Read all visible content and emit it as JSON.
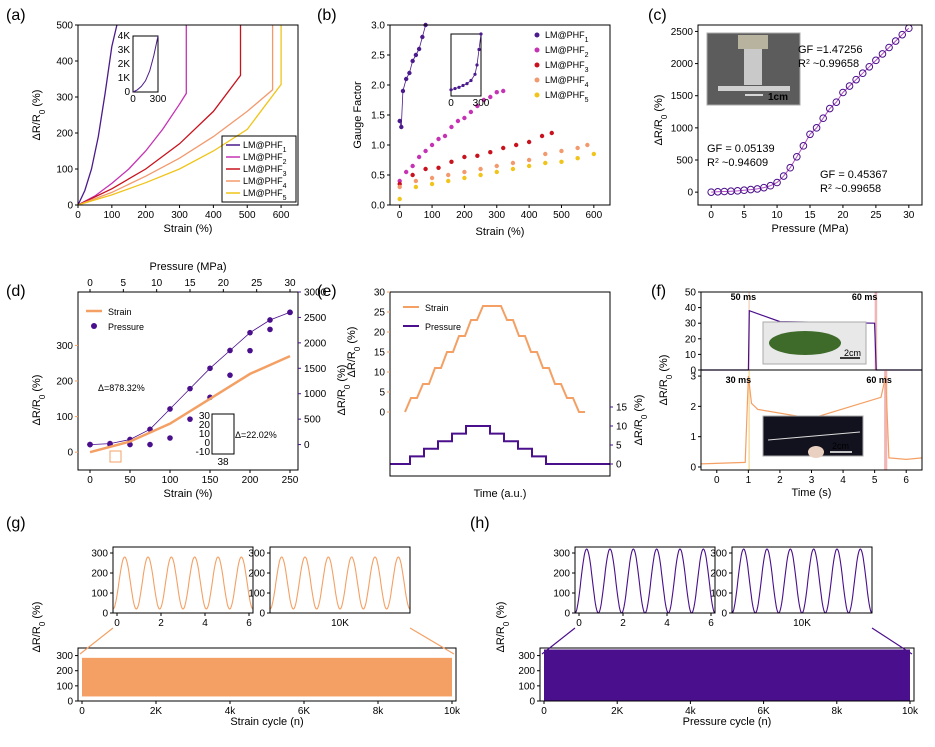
{
  "panel_labels": [
    "(a)",
    "(b)",
    "(c)",
    "(d)",
    "(e)",
    "(f)",
    "(g)",
    "(h)"
  ],
  "photo_labels": {
    "c": "1cm",
    "f_top": "2cm",
    "f_bottom": "2cm"
  },
  "colors": {
    "PHF1": "#4b1a8c",
    "PHF2": "#c532b4",
    "PHF3": "#c8121d",
    "PHF4": "#f29a6e",
    "PHF5": "#f0c419",
    "strain": "#f4a064",
    "pressure": "#4a0f8c",
    "fit": "#b050c0"
  },
  "chart_data": [
    {
      "id": "a",
      "type": "line",
      "xlabel": "Strain (%)",
      "ylabel": "ΔR/R0 (%)",
      "xlim": [
        0,
        650
      ],
      "ylim": [
        0,
        500
      ],
      "xticks": [
        "0",
        "100",
        "200",
        "300",
        "400",
        "500",
        "600"
      ],
      "yticks": [
        "0",
        "100",
        "200",
        "300",
        "400",
        "500"
      ],
      "legend": "bottom-right",
      "series": [
        {
          "name": "LM@PHF1",
          "x": [
            0,
            20,
            40,
            60,
            80,
            100,
            115
          ],
          "y": [
            0,
            40,
            100,
            190,
            310,
            440,
            500
          ]
        },
        {
          "name": "LM@PHF2",
          "x": [
            0,
            50,
            100,
            150,
            200,
            250,
            300,
            320,
            320
          ],
          "y": [
            0,
            25,
            60,
            100,
            150,
            210,
            280,
            310,
            500
          ]
        },
        {
          "name": "LM@PHF3",
          "x": [
            0,
            100,
            200,
            300,
            400,
            480,
            480
          ],
          "y": [
            0,
            45,
            100,
            170,
            260,
            360,
            500
          ]
        },
        {
          "name": "LM@PHF4",
          "x": [
            0,
            100,
            200,
            300,
            400,
            500,
            575,
            575
          ],
          "y": [
            0,
            35,
            80,
            130,
            190,
            260,
            320,
            500
          ]
        },
        {
          "name": "LM@PHF5",
          "x": [
            0,
            100,
            200,
            300,
            400,
            500,
            600,
            600
          ],
          "y": [
            0,
            28,
            62,
            100,
            150,
            210,
            335,
            500
          ]
        }
      ],
      "inset": {
        "xlim": [
          0,
          300
        ],
        "ylim": [
          0,
          4000
        ],
        "xticks": [
          "0",
          "300"
        ],
        "yticks": [
          "0",
          "1K",
          "2K",
          "3K",
          "4K"
        ],
        "x": [
          0,
          50,
          100,
          150,
          200,
          250,
          300
        ],
        "y": [
          0,
          150,
          400,
          800,
          1500,
          2600,
          4000
        ]
      }
    },
    {
      "id": "b",
      "type": "scatter",
      "xlabel": "Strain (%)",
      "ylabel": "Gauge Factor",
      "xlim": [
        -30,
        650
      ],
      "ylim": [
        0,
        3.0
      ],
      "xticks": [
        "0",
        "100",
        "200",
        "300",
        "400",
        "500",
        "600"
      ],
      "yticks": [
        "0.0",
        "0.5",
        "1.0",
        "1.5",
        "2.0",
        "2.5",
        "3.0"
      ],
      "legend": "top-right",
      "series": [
        {
          "name": "LM@PHF1",
          "x": [
            0,
            5,
            10,
            20,
            30,
            40,
            50,
            60,
            70,
            80
          ],
          "y": [
            1.4,
            1.3,
            1.9,
            2.1,
            2.2,
            2.4,
            2.5,
            2.6,
            2.8,
            3.0
          ]
        },
        {
          "name": "LM@PHF2",
          "x": [
            0,
            20,
            40,
            60,
            80,
            100,
            120,
            140,
            160,
            180,
            200,
            220,
            240,
            260,
            280,
            300,
            320
          ],
          "y": [
            0.4,
            0.55,
            0.65,
            0.8,
            0.9,
            1.0,
            1.1,
            1.15,
            1.3,
            1.4,
            1.45,
            1.55,
            1.65,
            1.75,
            1.8,
            1.88,
            1.9
          ]
        },
        {
          "name": "LM@PHF3",
          "x": [
            0,
            40,
            80,
            120,
            160,
            200,
            240,
            280,
            320,
            360,
            400,
            440,
            470
          ],
          "y": [
            0.35,
            0.5,
            0.6,
            0.62,
            0.72,
            0.8,
            0.82,
            0.88,
            0.95,
            1.0,
            1.05,
            1.15,
            1.2
          ]
        },
        {
          "name": "LM@PHF4",
          "x": [
            0,
            50,
            100,
            150,
            200,
            250,
            300,
            350,
            400,
            450,
            500,
            550,
            580
          ],
          "y": [
            0.3,
            0.4,
            0.45,
            0.5,
            0.55,
            0.6,
            0.65,
            0.7,
            0.75,
            0.85,
            0.9,
            0.95,
            1.0
          ]
        },
        {
          "name": "LM@PHF5",
          "x": [
            0,
            50,
            100,
            150,
            200,
            250,
            300,
            350,
            400,
            450,
            500,
            550,
            600
          ],
          "y": [
            0.1,
            0.3,
            0.35,
            0.4,
            0.45,
            0.5,
            0.55,
            0.6,
            0.65,
            0.7,
            0.72,
            0.78,
            0.85
          ]
        }
      ],
      "inset": {
        "xlim": [
          0,
          300
        ],
        "xticks": [
          "0",
          "300"
        ],
        "x": [
          0,
          40,
          80,
          120,
          160,
          200,
          240,
          260,
          280,
          300
        ],
        "y": [
          0.1,
          0.12,
          0.14,
          0.17,
          0.2,
          0.25,
          0.35,
          0.5,
          0.75,
          1.0
        ]
      }
    },
    {
      "id": "c",
      "type": "line",
      "xlabel": "Pressure (MPa)",
      "ylabel": "ΔR/R0 (%)",
      "xlim": [
        -2,
        32
      ],
      "ylim": [
        -200,
        2600
      ],
      "xticks": [
        "0",
        "5",
        "10",
        "15",
        "20",
        "25",
        "30"
      ],
      "yticks": [
        "0",
        "500",
        "1000",
        "1500",
        "2000",
        "2500"
      ],
      "x": [
        0,
        1,
        2,
        3,
        4,
        5,
        6,
        7,
        8,
        9,
        10,
        11,
        12,
        13,
        14,
        15,
        16,
        17,
        18,
        19,
        20,
        21,
        22,
        23,
        24,
        25,
        26,
        27,
        28,
        29,
        30
      ],
      "y": [
        0,
        5,
        10,
        15,
        20,
        30,
        40,
        50,
        70,
        100,
        150,
        250,
        380,
        550,
        720,
        900,
        1000,
        1150,
        1300,
        1400,
        1550,
        1650,
        1750,
        1850,
        1950,
        2050,
        2150,
        2250,
        2350,
        2450,
        2550
      ],
      "annotations": [
        {
          "gf": "GF = 0.05139",
          "r2": "R",
          "r2v": "~0.94609"
        },
        {
          "gf": "GF = 0.45367",
          "r2": "R",
          "r2v": "~0.99658"
        },
        {
          "gf": "GF =1.47256",
          "r2": "R",
          "r2v": "~0.99658"
        }
      ]
    },
    {
      "id": "d",
      "type": "line",
      "xlabel": "Strain (%)",
      "ylabel_left": "ΔR/R0 (%)",
      "x2label": "Pressure (MPa)",
      "ylabel_right": "ΔR/R0 (%)",
      "xlim": [
        -15,
        260
      ],
      "ylim": [
        -50,
        450
      ],
      "xticks": [
        "0",
        "50",
        "100",
        "150",
        "200",
        "250"
      ],
      "yticks": [
        "0",
        "100",
        "200",
        "300"
      ],
      "x2lim": [
        0,
        30
      ],
      "x2ticks": [
        "0",
        "5",
        "10",
        "15",
        "20",
        "25",
        "30"
      ],
      "y2lim": [
        -500,
        3000
      ],
      "y2ticks": [
        "0",
        "500",
        "1000",
        "1500",
        "2000",
        "2500",
        "3000"
      ],
      "legend": [
        "Strain",
        "Pressure"
      ],
      "strain_series": {
        "x": [
          0,
          50,
          100,
          150,
          200,
          250
        ],
        "y": [
          0,
          30,
          80,
          150,
          220,
          270
        ]
      },
      "pressure_series": {
        "x": [
          0,
          3,
          6,
          9,
          12,
          15,
          18,
          21,
          24,
          27,
          30
        ],
        "y": [
          0,
          20,
          100,
          300,
          700,
          1100,
          1500,
          1850,
          2200,
          2450,
          2600
        ]
      },
      "annotations": [
        "Δ=878.32%",
        "Δ=22.02%"
      ],
      "inset": {
        "yticks": [
          "30",
          "20",
          "10",
          "0",
          "-10"
        ],
        "xlabel": "38"
      }
    },
    {
      "id": "e",
      "type": "line",
      "xlabel": "Time (a.u.)",
      "ylabel_left": "ΔR/R0 (%)",
      "ylabel_right": "ΔR/R0 (%)",
      "yticks_left": [
        "0",
        "5",
        "10",
        "15",
        "20",
        "25",
        "30"
      ],
      "yticks_right": [
        "0",
        "5",
        "10",
        "15"
      ],
      "legend": [
        "Strain",
        "Pressure"
      ]
    },
    {
      "id": "f",
      "type": "line",
      "xlabel": "Time (s)",
      "ylabel": "ΔR/R0 (%)",
      "xlim": [
        -0.5,
        6.5
      ],
      "xticks": [
        "0",
        "1",
        "2",
        "3",
        "4",
        "5",
        "6"
      ],
      "yticks_top": [
        "0",
        "10",
        "20",
        "30",
        "40",
        "50"
      ],
      "yticks_bottom": [
        "0",
        "1",
        "2",
        "3"
      ],
      "annotations": [
        "50 ms",
        "60 ms",
        "30 ms",
        "60 ms"
      ]
    },
    {
      "id": "g",
      "type": "area",
      "xlabel": "Strain cycle (n)",
      "ylabel": "ΔR/R0 (%)",
      "xticks": [
        "0",
        "2K",
        "4k",
        "6K",
        "8k",
        "10k"
      ],
      "yticks": [
        "0",
        "100",
        "200",
        "300"
      ],
      "band": [
        30,
        285
      ],
      "insets": [
        {
          "xticks": [
            "0",
            "2",
            "4",
            "6"
          ],
          "yticks": [
            "0",
            "100",
            "200",
            "300"
          ],
          "peaks": 6
        },
        {
          "xticks": [
            "10K"
          ],
          "yticks": [
            "0",
            "100",
            "200",
            "300"
          ],
          "peaks": 6
        }
      ]
    },
    {
      "id": "h",
      "type": "area",
      "xlabel": "Pressure cycle (n)",
      "ylabel": "ΔR/R0 (%)",
      "xticks": [
        "0",
        "2K",
        "4k",
        "6K",
        "8k",
        "10k"
      ],
      "yticks": [
        "0",
        "100",
        "200",
        "300"
      ],
      "band": [
        0,
        340
      ],
      "insets": [
        {
          "xticks": [
            "0",
            "2",
            "4",
            "6"
          ],
          "yticks": [
            "0",
            "100",
            "200",
            "300"
          ],
          "peaks": 6
        },
        {
          "xticks": [
            "10K"
          ],
          "yticks": [
            "0",
            "100",
            "200",
            "300"
          ],
          "peaks": 6
        }
      ]
    }
  ]
}
